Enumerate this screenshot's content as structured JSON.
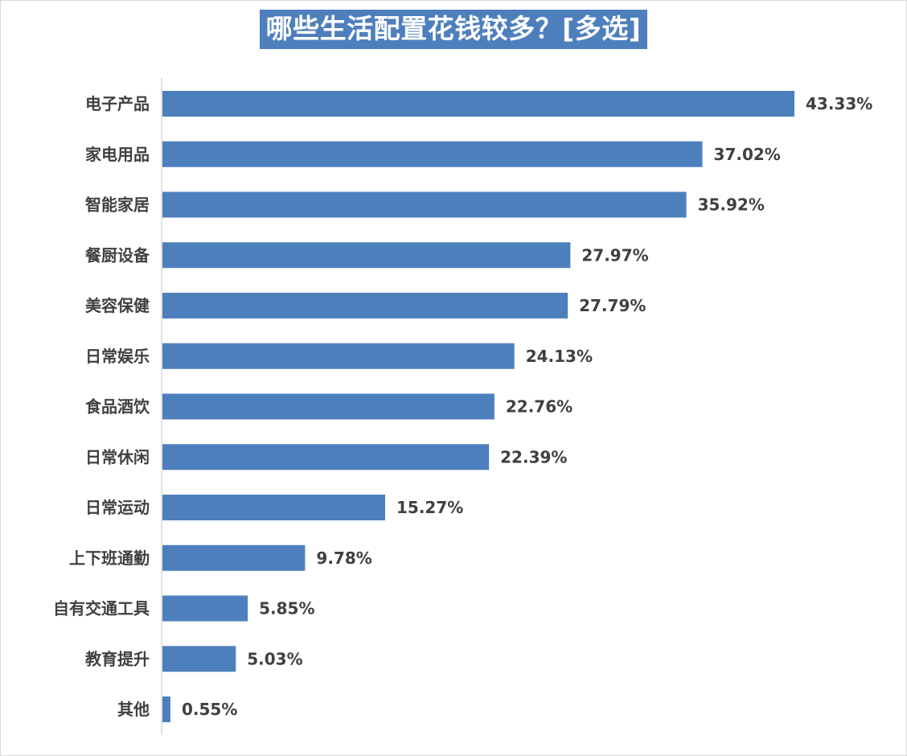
{
  "chart_data": {
    "type": "bar",
    "orientation": "horizontal",
    "title": "哪些生活配置花钱较多？[多选]",
    "categories": [
      "电子产品",
      "家电用品",
      "智能家居",
      "餐厨设备",
      "美容保健",
      "日常娱乐",
      "食品酒饮",
      "日常休闲",
      "日常运动",
      "上下班通勤",
      "自有交通工具",
      "教育提升",
      "其他"
    ],
    "values": [
      43.33,
      37.02,
      35.92,
      27.97,
      27.79,
      24.13,
      22.76,
      22.39,
      15.27,
      9.78,
      5.85,
      5.03,
      0.55
    ],
    "value_labels": [
      "43.33%",
      "37.02%",
      "35.92%",
      "27.97%",
      "27.79%",
      "24.13%",
      "22.76%",
      "22.39%",
      "15.27%",
      "9.78%",
      "5.85%",
      "5.03%",
      "0.55%"
    ],
    "xlim": [
      0,
      43.33
    ],
    "grid": false,
    "legend": "none",
    "bar_color": "#4e7fbd",
    "title_background": "#4e7fbd",
    "title_color": "#ffffff",
    "label_color": "#404040"
  }
}
